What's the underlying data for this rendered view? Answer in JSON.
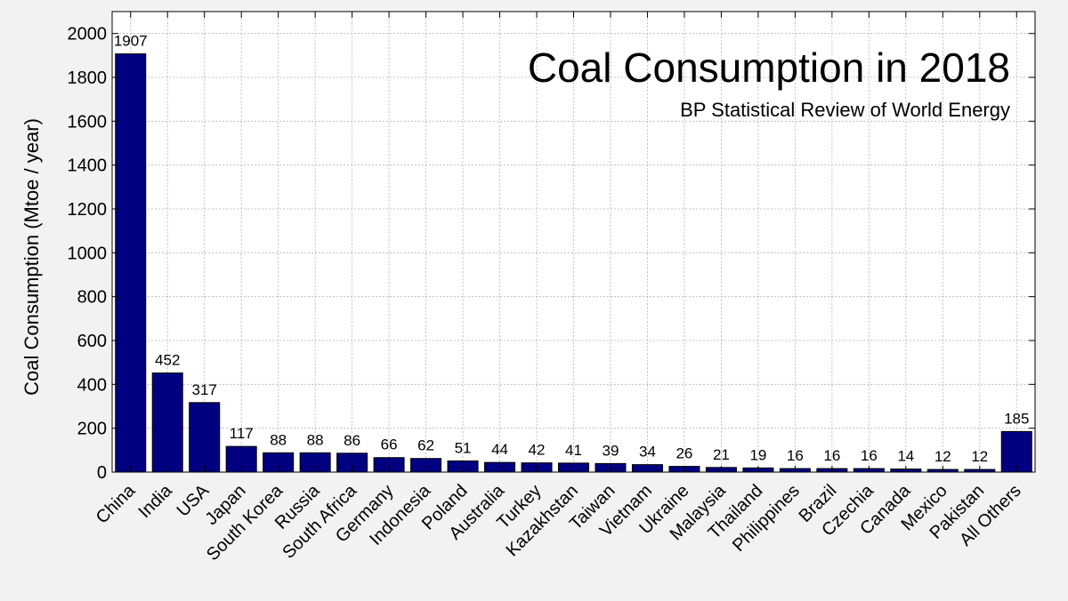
{
  "chart_data": {
    "type": "bar",
    "title": "Coal Consumption in 2018",
    "subtitle": "BP Statistical Review of World Energy",
    "xlabel": "",
    "ylabel": "Coal Consumption (Mtoe / year)",
    "ylim": [
      0,
      2100
    ],
    "yticks": [
      0,
      200,
      400,
      600,
      800,
      1000,
      1200,
      1400,
      1600,
      1800,
      2000
    ],
    "grid": true,
    "bar_color": "#000080",
    "categories": [
      "China",
      "India",
      "USA",
      "Japan",
      "South Korea",
      "Russia",
      "South Africa",
      "Germany",
      "Indonesia",
      "Poland",
      "Australia",
      "Turkey",
      "Kazakhstan",
      "Taiwan",
      "Vietnam",
      "Ukraine",
      "Malaysia",
      "Thailand",
      "Philippines",
      "Brazil",
      "Czechia",
      "Canada",
      "Mexico",
      "Pakistan",
      "All Others"
    ],
    "values": [
      1907,
      452,
      317,
      117,
      88,
      88,
      86,
      66,
      62,
      51,
      44,
      42,
      41,
      39,
      34,
      26,
      21,
      19,
      16,
      16,
      16,
      14,
      12,
      12,
      185
    ]
  }
}
